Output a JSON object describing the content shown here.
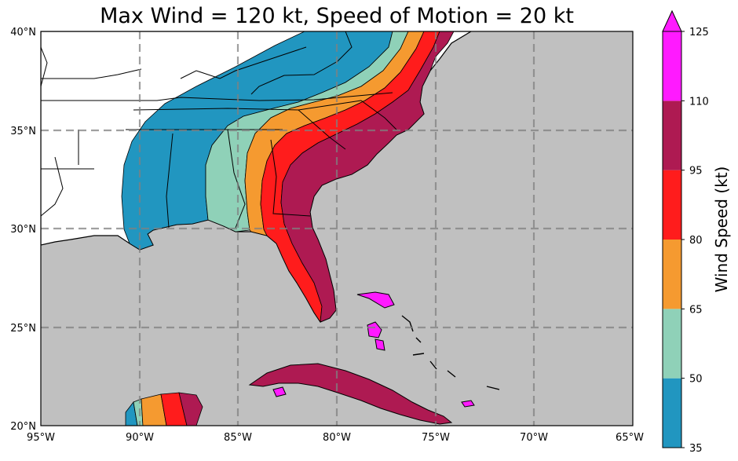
{
  "title": "Max Wind = 120 kt, Speed of Motion = 20 kt",
  "map": {
    "lon_range": [
      -95,
      -65
    ],
    "lat_range": [
      20,
      40
    ],
    "lon_ticks": [
      "95°W",
      "90°W",
      "85°W",
      "80°W",
      "75°W",
      "70°W",
      "65°W"
    ],
    "lat_ticks": [
      "40°N",
      "35°N",
      "30°N",
      "25°N",
      "20°N"
    ],
    "ocean_color": "#c0c0c0",
    "land_color": "#ffffff",
    "gridlines": "dashed"
  },
  "colorbar": {
    "label": "Wind Speed (kt)",
    "ticks": [
      "35",
      "50",
      "65",
      "80",
      "95",
      "110",
      "125"
    ],
    "colors": [
      "#2196c0",
      "#8fd1b8",
      "#f59a30",
      "#ff1c1c",
      "#ae1a52",
      "#ff1aff"
    ],
    "extend": "max"
  }
}
